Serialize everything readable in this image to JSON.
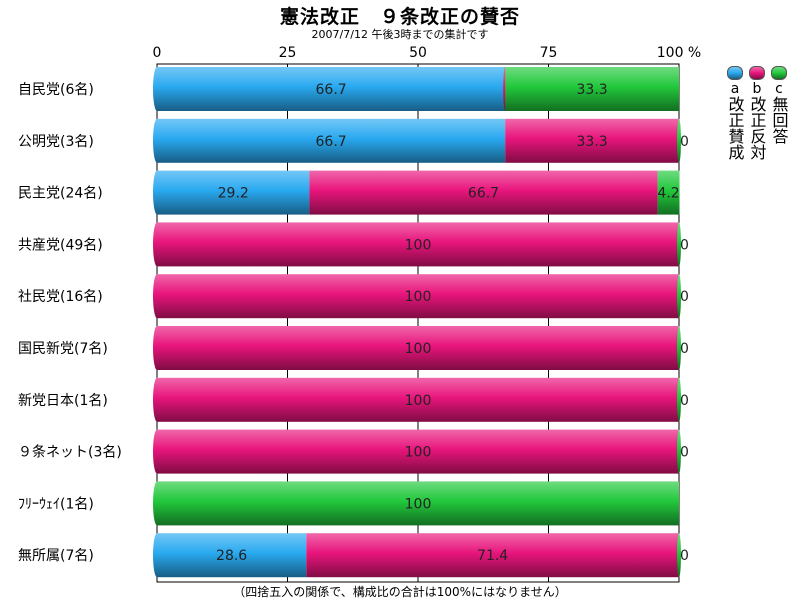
{
  "chart_data": {
    "type": "bar",
    "orientation": "horizontal",
    "stacked": true,
    "title": "憲法改正　９条改正の賛否",
    "subtitle": "2007/7/12 午後3時までの集計です",
    "footnote": "（四捨五入の関係で、構成比の合計は100%にはなりません）",
    "x_ticks": [
      "0",
      "25",
      "50",
      "75",
      "100 %"
    ],
    "xlim": [
      0,
      100
    ],
    "grid": true,
    "legend_position": "right",
    "categories": [
      "自民党(6名)",
      "公明党(3名)",
      "民主党(24名)",
      "共産党(49名)",
      "社民党(16名)",
      "国民新党(7名)",
      "新党日本(1名)",
      "９条ネット(3名)",
      "ﾌﾘｰｳｪｲ(1名)",
      "無所属(7名)"
    ],
    "series": [
      {
        "letter": "a",
        "name": "改正賛成",
        "color": "#29a9f0",
        "values": [
          66.7,
          66.7,
          29.2,
          0,
          0,
          0,
          0,
          0,
          0,
          28.6
        ],
        "labels": [
          "66.7",
          "66.7",
          "29.2",
          "0",
          "0",
          "0",
          "0",
          "0",
          "",
          "28.6"
        ]
      },
      {
        "letter": "b",
        "name": "改正反対",
        "color": "#e8157c",
        "values": [
          0,
          33.3,
          66.7,
          100,
          100,
          100,
          100,
          100,
          0,
          71.4
        ],
        "labels": [
          "0",
          "33.3",
          "66.7",
          "100",
          "100",
          "100",
          "100",
          "100",
          "",
          "71.4"
        ]
      },
      {
        "letter": "c",
        "name": "無回答",
        "color": "#22c83c",
        "values": [
          33.3,
          0,
          4.2,
          0,
          0,
          0,
          0,
          0,
          100,
          0
        ],
        "labels": [
          "33.3",
          "0",
          "4.2",
          "0",
          "0",
          "0",
          "0",
          "0",
          "100",
          "0"
        ]
      }
    ]
  }
}
